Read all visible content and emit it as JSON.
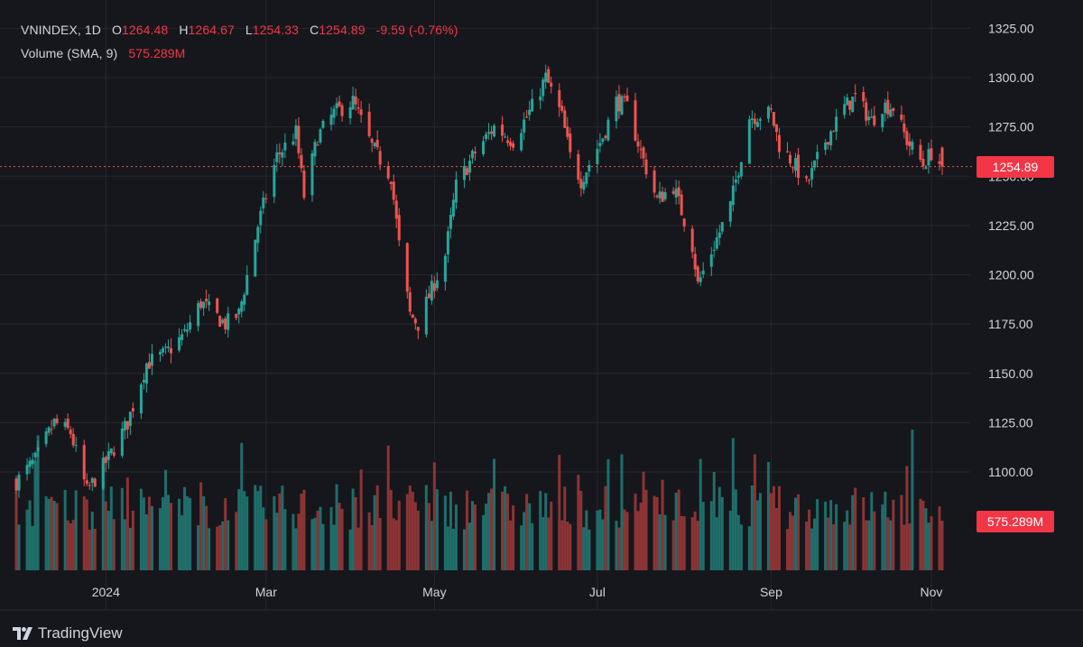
{
  "legend": {
    "symbol": "VNINDEX, 1D",
    "open_label": "O",
    "open": "1264.48",
    "high_label": "H",
    "high": "1264.67",
    "low_label": "L",
    "low": "1254.33",
    "close_label": "C",
    "close": "1254.89",
    "change": "-9.59 (-0.76%)",
    "volume_label": "Volume (SMA, 9)",
    "volume_value": "575.289M"
  },
  "price_tag": "1254.89",
  "volume_tag": "575.289M",
  "brand": "TradingView",
  "colors": {
    "background": "#16171c",
    "up": "#26a69a",
    "down": "#ef5350",
    "up_volume": "#1f6e6a",
    "down_volume": "#8c3436",
    "grid": "#26272d",
    "text": "#d1d4dc"
  },
  "chart_data": {
    "type": "candlestick",
    "title": "VNINDEX, 1D",
    "ylim": [
      1075,
      1335
    ],
    "y_ticks": [
      "1100.00",
      "1125.00",
      "1150.00",
      "1175.00",
      "1200.00",
      "1225.00",
      "1250.00",
      "1275.00",
      "1300.00",
      "1325.00"
    ],
    "x_ticks": [
      "2024",
      "Mar",
      "May",
      "Jul",
      "Sep",
      "Nov"
    ],
    "x_range": [
      "2023-11-29",
      "2024-11-06"
    ],
    "grid": true,
    "last_close": 1254.89,
    "last_volume": "575.289M",
    "close_path": [
      [
        "2023-11-30",
        1095
      ],
      [
        "2023-12-07",
        1106
      ],
      [
        "2023-12-14",
        1125
      ],
      [
        "2023-12-20",
        1120
      ],
      [
        "2023-12-26",
        1090
      ],
      [
        "2024-01-03",
        1107
      ],
      [
        "2024-01-10",
        1125
      ],
      [
        "2024-01-17",
        1155
      ],
      [
        "2024-01-24",
        1160
      ],
      [
        "2024-01-31",
        1170
      ],
      [
        "2024-02-06",
        1186
      ],
      [
        "2024-02-15",
        1175
      ],
      [
        "2024-02-20",
        1180
      ],
      [
        "2024-02-27",
        1225
      ],
      [
        "2024-03-05",
        1260
      ],
      [
        "2024-03-12",
        1272
      ],
      [
        "2024-03-15",
        1240
      ],
      [
        "2024-03-20",
        1270
      ],
      [
        "2024-03-26",
        1282
      ],
      [
        "2024-04-02",
        1288
      ],
      [
        "2024-04-09",
        1265
      ],
      [
        "2024-04-16",
        1250
      ],
      [
        "2024-04-19",
        1215
      ],
      [
        "2024-04-23",
        1180
      ],
      [
        "2024-04-26",
        1175
      ],
      [
        "2024-05-06",
        1210
      ],
      [
        "2024-05-10",
        1245
      ],
      [
        "2024-05-17",
        1262
      ],
      [
        "2024-05-24",
        1275
      ],
      [
        "2024-05-31",
        1268
      ],
      [
        "2024-06-07",
        1285
      ],
      [
        "2024-06-12",
        1300
      ],
      [
        "2024-06-18",
        1280
      ],
      [
        "2024-06-21",
        1260
      ],
      [
        "2024-06-25",
        1248
      ],
      [
        "2024-07-03",
        1270
      ],
      [
        "2024-07-08",
        1288
      ],
      [
        "2024-07-12",
        1285
      ],
      [
        "2024-07-18",
        1258
      ],
      [
        "2024-07-23",
        1238
      ],
      [
        "2024-07-29",
        1245
      ],
      [
        "2024-08-05",
        1215
      ],
      [
        "2024-08-07",
        1195
      ],
      [
        "2024-08-13",
        1215
      ],
      [
        "2024-08-19",
        1235
      ],
      [
        "2024-08-26",
        1280
      ],
      [
        "2024-09-03",
        1282
      ],
      [
        "2024-09-06",
        1266
      ],
      [
        "2024-09-12",
        1255
      ],
      [
        "2024-09-16",
        1245
      ],
      [
        "2024-09-23",
        1268
      ],
      [
        "2024-09-30",
        1285
      ],
      [
        "2024-10-04",
        1290
      ],
      [
        "2024-10-10",
        1278
      ],
      [
        "2024-10-14",
        1286
      ],
      [
        "2024-10-18",
        1285
      ],
      [
        "2024-10-23",
        1268
      ],
      [
        "2024-10-29",
        1256
      ],
      [
        "2024-11-01",
        1262
      ],
      [
        "2024-11-05",
        1254.89
      ]
    ]
  }
}
